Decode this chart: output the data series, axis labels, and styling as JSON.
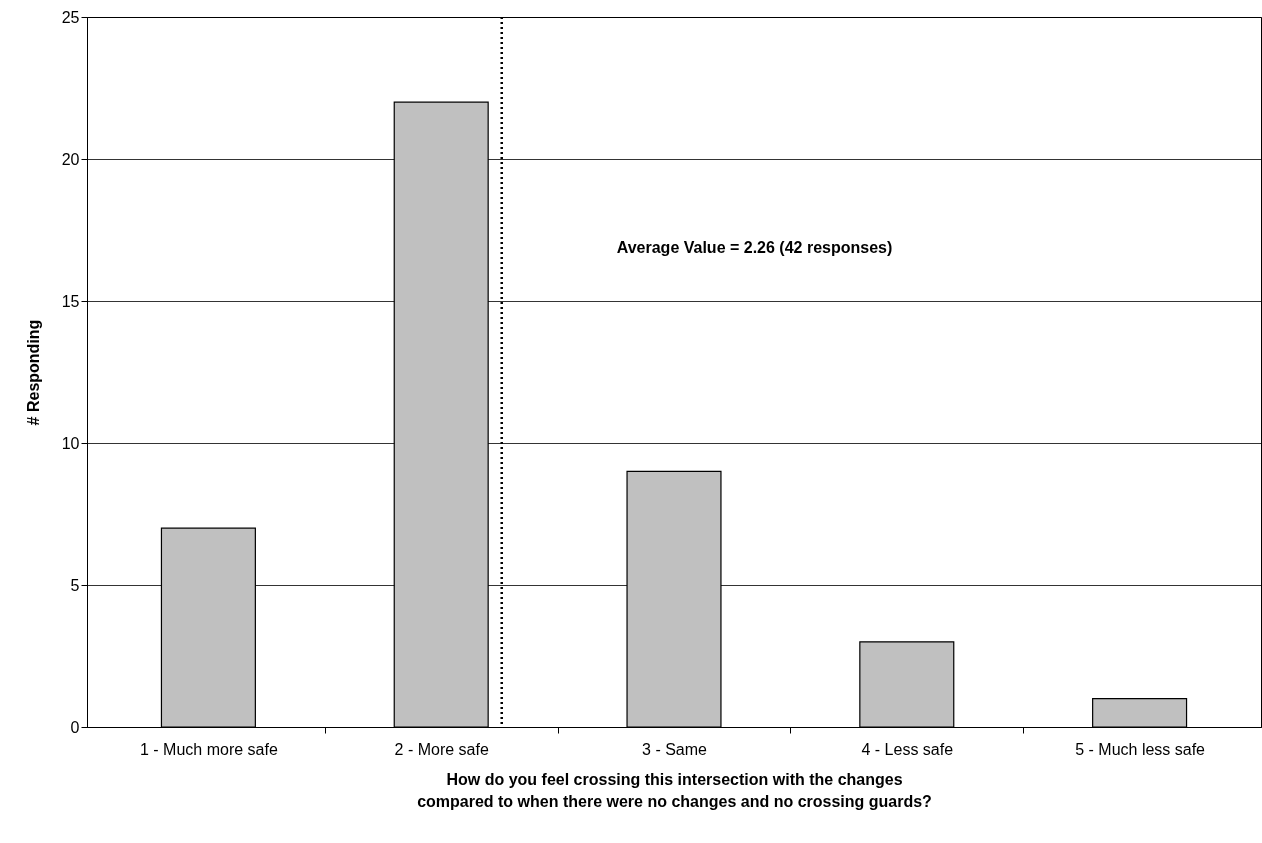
{
  "chart_data": {
    "type": "bar",
    "xlabel": "How do you feel crossing this intersection with the changes compared to when there were no changes and no crossing guards?",
    "ylabel": "# Responding",
    "x": [
      1,
      2,
      3,
      4,
      5
    ],
    "xlim": [
      0.5,
      5.5
    ],
    "xticks": [
      {
        "value": 1,
        "label": "1 - Much more safe"
      },
      {
        "value": 1.5,
        "label": null
      },
      {
        "value": 2,
        "label": "2 - More safe"
      },
      {
        "value": 2.5,
        "label": null
      },
      {
        "value": 3,
        "label": "3 - Same"
      },
      {
        "value": 3.5,
        "label": null
      },
      {
        "value": 4,
        "label": "4 - Less safe"
      },
      {
        "value": 4.5,
        "label": null
      },
      {
        "value": 5,
        "label": "5 - Much less safe"
      }
    ],
    "values": [
      7,
      22,
      9,
      3,
      1
    ],
    "color": "#c0c0c0",
    "ylim": [
      0,
      25
    ],
    "yticks": [
      0,
      5,
      10,
      15,
      20,
      25
    ],
    "grid": "y",
    "ref_lines": [
      {
        "axis": "x",
        "value": 2.26,
        "label": "Average Value = 2.26 (42 responses)",
        "line_style": "dotted",
        "color": "#000000"
      }
    ]
  }
}
